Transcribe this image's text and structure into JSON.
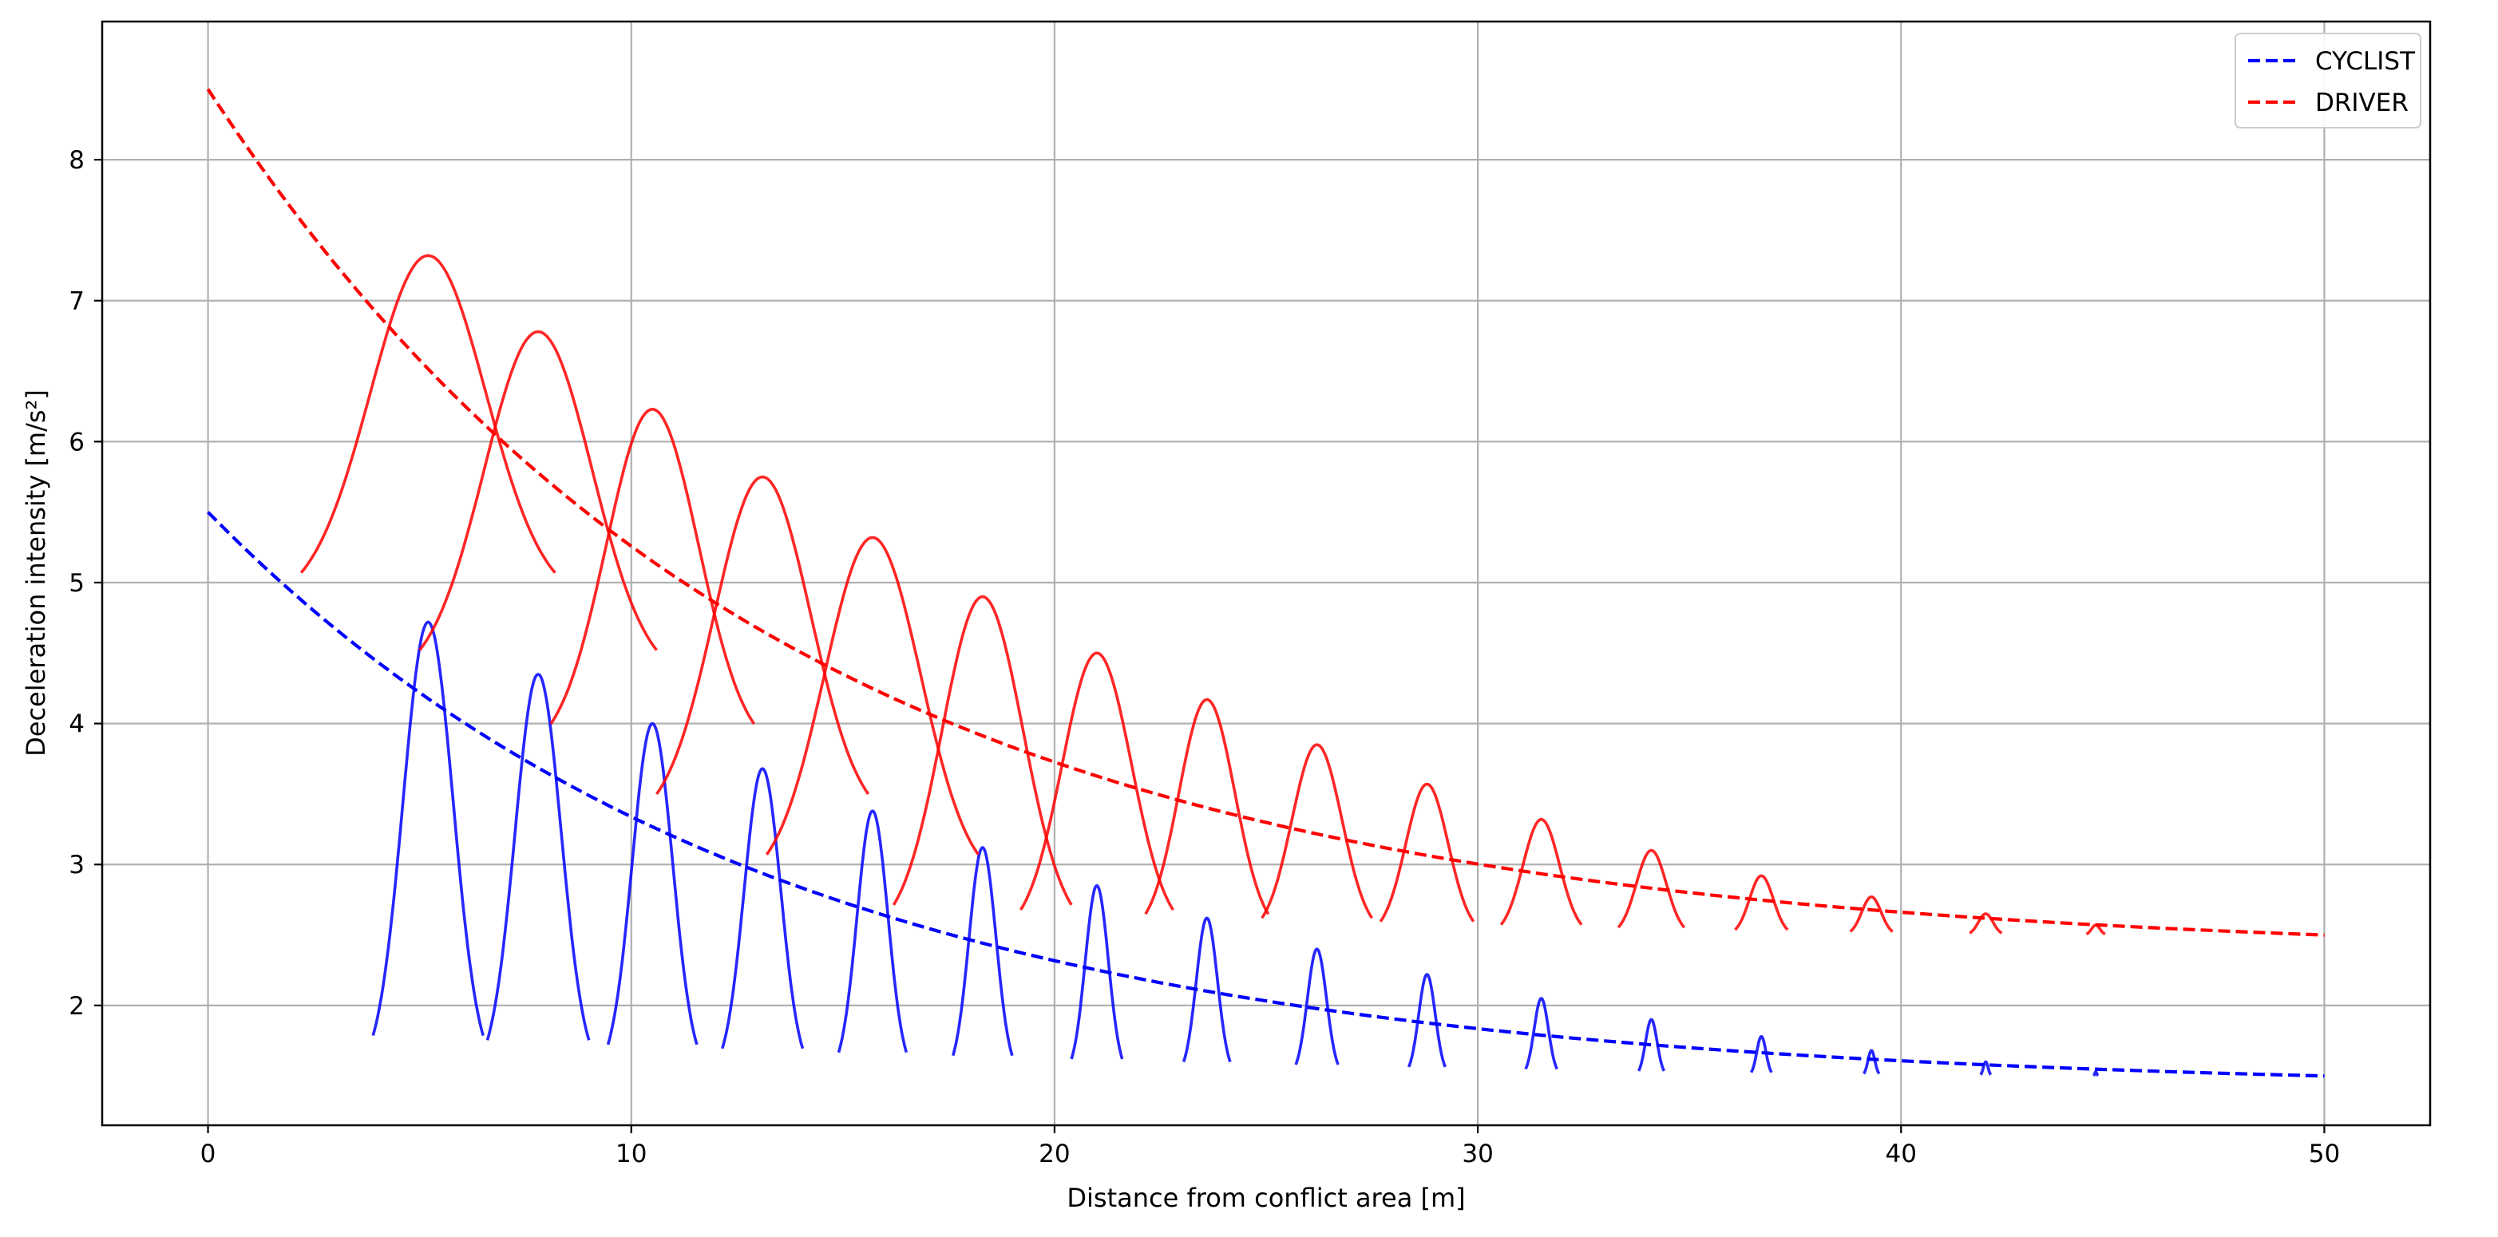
{
  "chart_data": {
    "type": "line",
    "title": "",
    "xlabel": "Distance from conflict area [m]",
    "ylabel": "Deceleration intensity [m/s²]",
    "xlim": [
      -2.5,
      52.5
    ],
    "ylim": [
      1.15,
      8.98
    ],
    "x_ticks": [
      0,
      10,
      20,
      30,
      40,
      50
    ],
    "y_ticks": [
      2,
      3,
      4,
      5,
      6,
      7,
      8
    ],
    "grid": true,
    "legend_position": "top-right",
    "series": [
      {
        "name": "CYCLIST",
        "color": "#0000ff",
        "style": "dashed",
        "envelope": {
          "start_x": 0,
          "start_y": 5.5,
          "end_x": 50,
          "end_y": 1.5,
          "min_y": 1.5
        },
        "bumps": [
          {
            "center": 5.2,
            "peak": 4.72,
            "half_width": 1.3
          },
          {
            "center": 7.8,
            "peak": 4.35,
            "half_width": 1.2
          },
          {
            "center": 10.5,
            "peak": 4.0,
            "half_width": 1.05
          },
          {
            "center": 13.1,
            "peak": 3.68,
            "half_width": 0.95
          },
          {
            "center": 15.7,
            "peak": 3.38,
            "half_width": 0.8
          },
          {
            "center": 18.3,
            "peak": 3.12,
            "half_width": 0.7
          },
          {
            "center": 21.0,
            "peak": 2.85,
            "half_width": 0.6
          },
          {
            "center": 23.6,
            "peak": 2.62,
            "half_width": 0.55
          },
          {
            "center": 26.2,
            "peak": 2.4,
            "half_width": 0.5
          },
          {
            "center": 28.8,
            "peak": 2.22,
            "half_width": 0.43
          },
          {
            "center": 31.5,
            "peak": 2.05,
            "half_width": 0.37
          },
          {
            "center": 34.1,
            "peak": 1.9,
            "half_width": 0.3
          },
          {
            "center": 36.7,
            "peak": 1.78,
            "half_width": 0.24
          },
          {
            "center": 39.3,
            "peak": 1.68,
            "half_width": 0.18
          },
          {
            "center": 42.0,
            "peak": 1.6,
            "half_width": 0.12
          },
          {
            "center": 44.6,
            "peak": 1.53,
            "half_width": 0.05
          }
        ]
      },
      {
        "name": "DRIVER",
        "color": "#ff0000",
        "style": "dashed",
        "envelope": {
          "start_x": 0,
          "start_y": 8.5,
          "end_x": 50,
          "end_y": 2.5,
          "min_y": 2.5
        },
        "bumps": [
          {
            "center": 5.2,
            "peak": 7.32,
            "half_width": 3.0,
            "base": 4.85
          },
          {
            "center": 7.8,
            "peak": 6.78,
            "half_width": 2.8,
            "base": 4.3
          },
          {
            "center": 10.5,
            "peak": 6.23,
            "half_width": 2.4,
            "base": 3.78
          },
          {
            "center": 13.1,
            "peak": 5.75,
            "half_width": 2.5,
            "base": 3.28
          },
          {
            "center": 15.7,
            "peak": 5.32,
            "half_width": 2.5,
            "base": 2.85
          },
          {
            "center": 18.3,
            "peak": 4.9,
            "half_width": 2.1,
            "base": 2.5
          },
          {
            "center": 21.0,
            "peak": 4.5,
            "half_width": 1.8,
            "base": 2.5
          },
          {
            "center": 23.6,
            "peak": 4.17,
            "half_width": 1.45,
            "base": 2.5
          },
          {
            "center": 26.2,
            "peak": 3.85,
            "half_width": 1.3,
            "base": 2.5
          },
          {
            "center": 28.8,
            "peak": 3.57,
            "half_width": 1.1,
            "base": 2.5
          },
          {
            "center": 31.5,
            "peak": 3.32,
            "half_width": 0.95,
            "base": 2.5
          },
          {
            "center": 34.1,
            "peak": 3.1,
            "half_width": 0.78,
            "base": 2.5
          },
          {
            "center": 36.7,
            "peak": 2.92,
            "half_width": 0.62,
            "base": 2.5
          },
          {
            "center": 39.3,
            "peak": 2.77,
            "half_width": 0.5,
            "base": 2.5
          },
          {
            "center": 42.0,
            "peak": 2.65,
            "half_width": 0.38,
            "base": 2.5
          },
          {
            "center": 44.6,
            "peak": 2.57,
            "half_width": 0.22,
            "base": 2.5
          }
        ]
      }
    ]
  }
}
